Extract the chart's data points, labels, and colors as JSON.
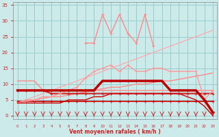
{
  "x": [
    0,
    1,
    2,
    3,
    4,
    5,
    6,
    7,
    8,
    9,
    10,
    11,
    12,
    13,
    14,
    15,
    16,
    17,
    18,
    19,
    20,
    21,
    22,
    23
  ],
  "background_color": "#cceaea",
  "grid_color": "#99cccc",
  "xlabel": "Vent moyen/en rafales ( km/h )",
  "xlabel_color": "#cc2222",
  "tick_color": "#cc2222",
  "ylim": [
    -1,
    36
  ],
  "xlim": [
    -0.5,
    23.5
  ],
  "yticks": [
    0,
    5,
    10,
    15,
    20,
    25,
    30,
    35
  ],
  "series": [
    {
      "y": [
        4.5,
        4.5,
        4.5,
        4.5,
        4.5,
        4.5,
        4.5,
        4.5,
        4.5,
        4.5,
        4.5,
        4.5,
        4.5,
        4.5,
        4.5,
        4.5,
        4.5,
        4.5,
        4.5,
        4.5,
        4.5,
        4.5,
        4.5,
        4.5
      ],
      "color": "#cc0000",
      "lw": 1.2,
      "marker": "+"
    },
    {
      "y": [
        4,
        4.5,
        5,
        5.5,
        6,
        6,
        6.5,
        7,
        7.5,
        8,
        8.5,
        9,
        9,
        9.5,
        10,
        10,
        10.5,
        11,
        11,
        11.5,
        12,
        12.5,
        13,
        13.5
      ],
      "color": "#ff8888",
      "lw": 1.0,
      "marker": null
    },
    {
      "y": [
        4,
        5,
        6,
        7,
        8,
        9,
        10,
        11,
        12,
        13,
        14,
        15,
        16,
        17,
        18,
        19,
        20,
        21,
        22,
        23,
        24,
        25,
        26,
        27
      ],
      "color": "#ffaaaa",
      "lw": 0.9,
      "marker": null
    },
    {
      "y": [
        8,
        8,
        8,
        8,
        7,
        7,
        7,
        7,
        7,
        7,
        7,
        7,
        7,
        7,
        7,
        7,
        7,
        7,
        7,
        7,
        7,
        7,
        7,
        7
      ],
      "color": "#cc2222",
      "lw": 1.5,
      "marker": "+"
    },
    {
      "y": [
        11,
        11,
        11,
        8,
        8,
        8,
        8,
        8,
        8,
        8,
        8,
        8,
        8,
        8,
        8,
        8,
        8,
        8,
        8,
        8,
        8,
        8,
        8,
        8
      ],
      "color": "#ff8888",
      "lw": 1.0,
      "marker": null
    },
    {
      "y": [
        4,
        5,
        5,
        6,
        6,
        7,
        8,
        9,
        12,
        14,
        15,
        16,
        14,
        16,
        14,
        14,
        15,
        15,
        14,
        14,
        14,
        14,
        5,
        8
      ],
      "color": "#ff9999",
      "lw": 1.0,
      "marker": "+"
    },
    {
      "y": [
        null,
        null,
        null,
        null,
        null,
        null,
        null,
        null,
        23,
        23,
        32,
        26,
        32,
        26,
        23,
        32,
        22,
        null,
        null,
        null,
        null,
        null,
        null,
        null
      ],
      "color": "#ff8888",
      "lw": 1.0,
      "marker": "+"
    },
    {
      "y": [
        8,
        8,
        8,
        8,
        8,
        8,
        8,
        8,
        8,
        8,
        11,
        11,
        11,
        11,
        11,
        11,
        11,
        11,
        8,
        8,
        8,
        8,
        5,
        1
      ],
      "color": "#bb0000",
      "lw": 2.5,
      "marker": "+"
    },
    {
      "y": [
        4,
        4,
        4,
        4,
        4,
        4,
        5,
        5,
        5,
        6,
        6,
        7,
        7,
        7,
        7,
        7,
        7,
        7,
        7,
        7,
        6,
        5,
        3,
        0
      ],
      "color": "#cc0000",
      "lw": 1.0,
      "marker": null
    }
  ],
  "arrow_directions": [
    180,
    160,
    150,
    135,
    135,
    180,
    180,
    180,
    180,
    180,
    180,
    180,
    180,
    180,
    180,
    180,
    180,
    180,
    135,
    180,
    180,
    150,
    135,
    180
  ],
  "arrow_color": "#cc2222"
}
